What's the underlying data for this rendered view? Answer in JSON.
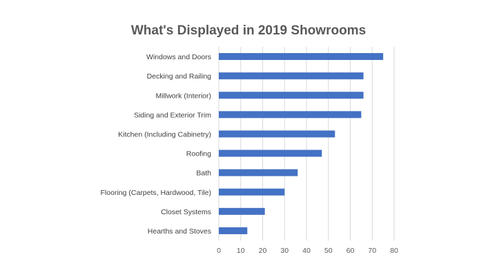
{
  "chart_data": {
    "type": "bar",
    "orientation": "horizontal",
    "title": "What's Displayed in 2019 Showrooms",
    "categories": [
      "Windows and Doors",
      "Decking and Railing",
      "Millwork (Interior)",
      "Siding and Exterior Trim",
      "Kitchen (Including Cabinetry)",
      "Roofing",
      "Bath",
      "Flooring (Carpets, Hardwood, Tile)",
      "Closet Systems",
      "Hearths and Stoves"
    ],
    "values": [
      75,
      66,
      66,
      65,
      53,
      47,
      36,
      30,
      21,
      13
    ],
    "xlim": [
      0,
      80
    ],
    "xticks": [
      "0",
      "10",
      "20",
      "30",
      "40",
      "50",
      "60",
      "70",
      "80"
    ],
    "grid": "vertical",
    "bar_color": "#4472C4",
    "grid_color": "#D9D9D9"
  }
}
